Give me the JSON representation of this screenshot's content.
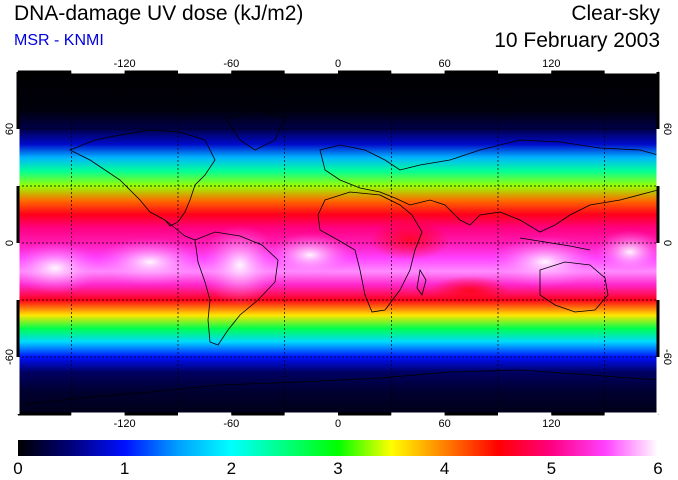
{
  "header": {
    "title": "DNA-damage UV dose (kJ/m2)",
    "subtitle": "MSR - KNMI",
    "condition": "Clear-sky",
    "date": "10 February 2003"
  },
  "map": {
    "lon_ticks": [
      {
        "value": -120,
        "label": "-120"
      },
      {
        "value": -60,
        "label": "-60"
      },
      {
        "value": 0,
        "label": "0"
      },
      {
        "value": 60,
        "label": "60"
      },
      {
        "value": 120,
        "label": "120"
      }
    ],
    "lat_ticks": [
      {
        "value": 60,
        "label": "60"
      },
      {
        "value": 0,
        "label": "0"
      },
      {
        "value": -60,
        "label": "-60"
      }
    ],
    "lon_range": [
      -180,
      180
    ],
    "lat_range": [
      -90,
      90
    ],
    "gridline_lons": [
      -150,
      -90,
      -30,
      30,
      90,
      150
    ],
    "gridline_lats": [
      -60,
      -30,
      0,
      30,
      60
    ],
    "dose_profile": [
      {
        "lat": 90,
        "dose": 0.0
      },
      {
        "lat": 70,
        "dose": 0.05
      },
      {
        "lat": 60,
        "dose": 0.3
      },
      {
        "lat": 52,
        "dose": 0.8
      },
      {
        "lat": 45,
        "dose": 1.6
      },
      {
        "lat": 38,
        "dose": 2.4
      },
      {
        "lat": 30,
        "dose": 3.3
      },
      {
        "lat": 22,
        "dose": 4.1
      },
      {
        "lat": 15,
        "dose": 4.6
      },
      {
        "lat": 8,
        "dose": 5.0
      },
      {
        "lat": 0,
        "dose": 5.2
      },
      {
        "lat": -8,
        "dose": 5.5
      },
      {
        "lat": -15,
        "dose": 5.7
      },
      {
        "lat": -22,
        "dose": 5.3
      },
      {
        "lat": -30,
        "dose": 4.6
      },
      {
        "lat": -38,
        "dose": 3.6
      },
      {
        "lat": -45,
        "dose": 2.7
      },
      {
        "lat": -52,
        "dose": 1.8
      },
      {
        "lat": -60,
        "dose": 1.0
      },
      {
        "lat": -68,
        "dose": 0.4
      },
      {
        "lat": -78,
        "dose": 0.2
      },
      {
        "lat": -90,
        "dose": 0.1
      }
    ]
  },
  "colorbar": {
    "min": 0,
    "max": 6,
    "labels": [
      "0",
      "1",
      "2",
      "3",
      "4",
      "5",
      "6"
    ],
    "stops": [
      {
        "value": 0.0,
        "color": "#000000"
      },
      {
        "value": 0.5,
        "color": "#00007a"
      },
      {
        "value": 1.0,
        "color": "#0010ff"
      },
      {
        "value": 1.5,
        "color": "#00a0ff"
      },
      {
        "value": 2.0,
        "color": "#00ffff"
      },
      {
        "value": 2.5,
        "color": "#00ff80"
      },
      {
        "value": 3.0,
        "color": "#00ff00"
      },
      {
        "value": 3.5,
        "color": "#ffff00"
      },
      {
        "value": 4.0,
        "color": "#ff8000"
      },
      {
        "value": 4.5,
        "color": "#ff0000"
      },
      {
        "value": 5.0,
        "color": "#ff0080"
      },
      {
        "value": 5.5,
        "color": "#ff40ff"
      },
      {
        "value": 6.0,
        "color": "#ffffff"
      }
    ]
  },
  "colors": {
    "subtitle": "#0000e0",
    "coastline": "#000000"
  }
}
